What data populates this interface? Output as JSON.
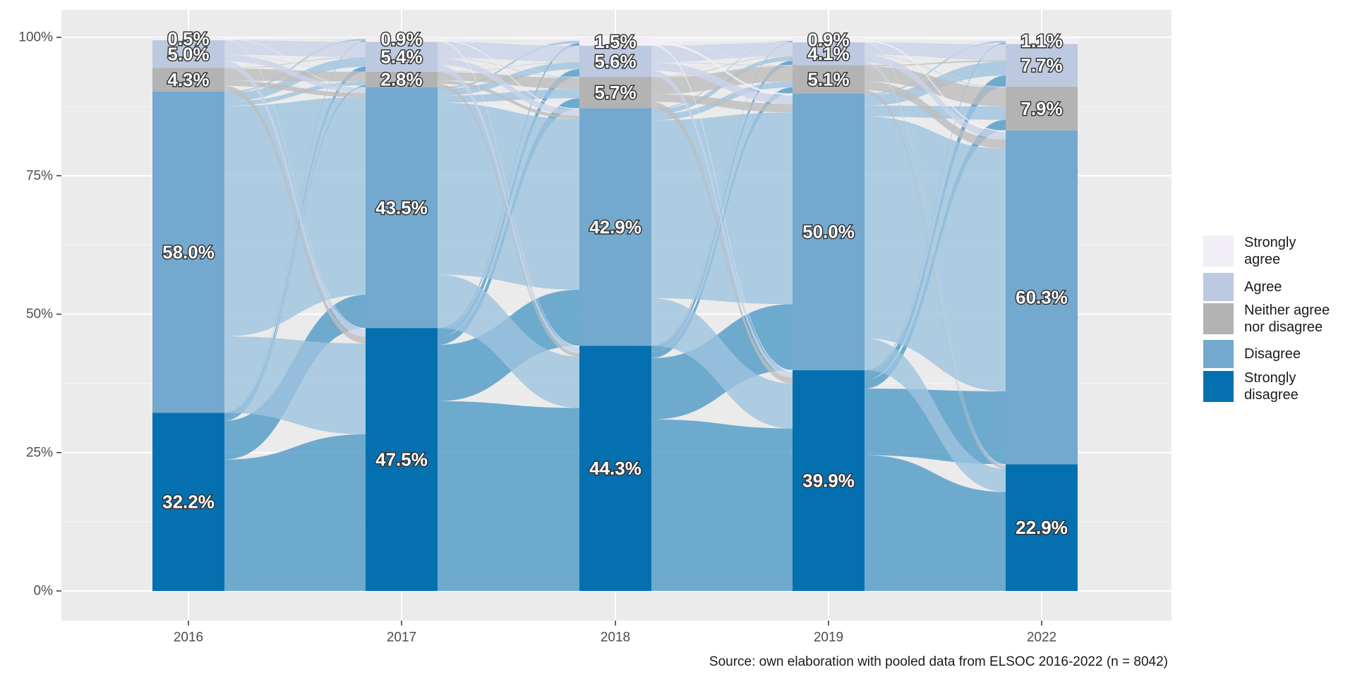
{
  "chart_data": {
    "type": "alluvial",
    "x": [
      "2016",
      "2017",
      "2018",
      "2019",
      "2022"
    ],
    "y_ticks": [
      "0%",
      "25%",
      "50%",
      "75%",
      "100%"
    ],
    "ylim": [
      0,
      100
    ],
    "categories": [
      "Strongly disagree",
      "Disagree",
      "Neither agree nor disagree",
      "Agree",
      "Strongly agree"
    ],
    "series": [
      {
        "name": "Strongly disagree",
        "color": "#0570b0",
        "values": [
          32.2,
          47.5,
          44.3,
          39.9,
          22.9
        ]
      },
      {
        "name": "Disagree",
        "color": "#74a9cf",
        "values": [
          58.0,
          43.5,
          42.9,
          50.0,
          60.3
        ]
      },
      {
        "name": "Neither agree nor disagree",
        "color": "#b3b3b3",
        "values": [
          4.3,
          2.8,
          5.7,
          5.1,
          7.9
        ]
      },
      {
        "name": "Agree",
        "color": "#bdc9e1",
        "values": [
          5.0,
          5.4,
          5.6,
          4.1,
          7.7
        ]
      },
      {
        "name": "Strongly agree",
        "color": "#f1eef6",
        "values": [
          0.5,
          0.9,
          1.5,
          0.9,
          1.1
        ]
      }
    ],
    "labels": [
      [
        "32.2%",
        "47.5%",
        "44.3%",
        "39.9%",
        "22.9%"
      ],
      [
        "58.0%",
        "43.5%",
        "42.9%",
        "50.0%",
        "60.3%"
      ],
      [
        "4.3%",
        "2.8%",
        "5.7%",
        "5.1%",
        "7.9%"
      ],
      [
        "5.0%",
        "5.4%",
        "5.6%",
        "4.1%",
        "7.7%"
      ],
      [
        "0.5%",
        "0.9%",
        "1.5%",
        "0.9%",
        "1.1%"
      ]
    ],
    "legend": {
      "position": "right",
      "items": [
        {
          "lines": [
            "Strongly",
            "agree"
          ],
          "color": "#f1eef6"
        },
        {
          "lines": [
            "Agree"
          ],
          "color": "#bdc9e1"
        },
        {
          "lines": [
            "Neither agree",
            "nor disagree"
          ],
          "color": "#b3b3b3"
        },
        {
          "lines": [
            "Disagree"
          ],
          "color": "#74a9cf"
        },
        {
          "lines": [
            "Strongly",
            "disagree"
          ],
          "color": "#0570b0"
        }
      ]
    },
    "caption": "Source: own elaboration with pooled data from ELSOC 2016-2022 (n = 8042)",
    "grid": true,
    "panel_background": "#ebebeb"
  }
}
